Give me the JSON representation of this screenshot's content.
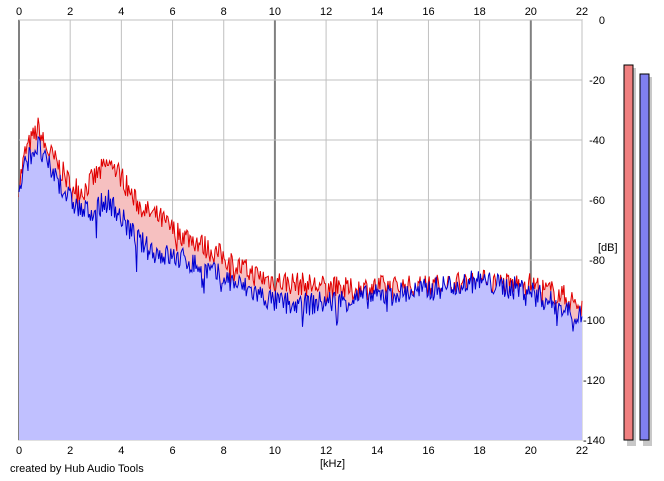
{
  "credit": "created by Hub Audio Tools",
  "colors": {
    "background": "#ffffff",
    "plot_background": "#ffffff",
    "grid": "#c0c0c0",
    "grid_major": "#808080",
    "ch1_line": "#e00000",
    "ch1_fill": "#f6c0c0",
    "ch2_line": "#0000d0",
    "ch2_fill": "#c0c0ff",
    "meter1": "#f08080",
    "meter2": "#8080f0",
    "meter_shadow": "#c8c8c8"
  },
  "chart_data": {
    "type": "area",
    "title": "",
    "xlabel": "[kHz]",
    "ylabel": "[dB]",
    "xlim": [
      0,
      22
    ],
    "ylim": [
      -140,
      0
    ],
    "x_ticks_top": [
      "0",
      "2",
      "4",
      "6",
      "8",
      "10",
      "12",
      "14",
      "16",
      "18",
      "20",
      "22"
    ],
    "x_ticks_bottom": [
      "0",
      "2",
      "4",
      "6",
      "8",
      "10",
      "12",
      "14",
      "16",
      "18",
      "20",
      "22"
    ],
    "y_ticks": [
      "0",
      "-20",
      "-40",
      "-60",
      "-80",
      "-100",
      "-120",
      "-140"
    ],
    "grid": true,
    "x": [
      0,
      0.25,
      0.5,
      0.75,
      1,
      1.5,
      2,
      2.5,
      3,
      3.5,
      4,
      4.5,
      5,
      5.5,
      6,
      6.5,
      7,
      7.5,
      8,
      8.5,
      9,
      9.5,
      10,
      11,
      12,
      13,
      14,
      15,
      16,
      17,
      18,
      19,
      20,
      20.5,
      21,
      21.5,
      22
    ],
    "series": [
      {
        "values": [
          -55,
          -44,
          -40,
          -36,
          -42,
          -48,
          -55,
          -57,
          -52,
          -48,
          -52,
          -60,
          -64,
          -66,
          -70,
          -72,
          -74,
          -77,
          -79,
          -82,
          -84,
          -86,
          -87,
          -88,
          -89,
          -90,
          -89,
          -89,
          -89,
          -88,
          -87,
          -88,
          -88,
          -90,
          -91,
          -93,
          -96
        ]
      },
      {
        "values": [
          -58,
          -48,
          -44,
          -42,
          -47,
          -53,
          -60,
          -64,
          -63,
          -60,
          -66,
          -72,
          -76,
          -78,
          -79,
          -80,
          -82,
          -84,
          -86,
          -88,
          -90,
          -92,
          -94,
          -95,
          -94,
          -93,
          -92,
          -91,
          -90,
          -88,
          -87,
          -89,
          -90,
          -93,
          -95,
          -97,
          -99
        ]
      }
    ],
    "level_meters": [
      -15,
      -18
    ]
  }
}
